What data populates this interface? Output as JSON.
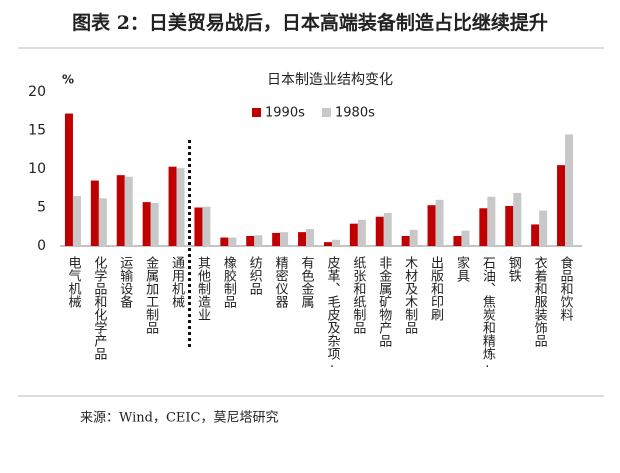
{
  "header": {
    "title": "图表 2：日美贸易战后，日本高端装备制造占比继续提升"
  },
  "chart_data": {
    "type": "bar",
    "title": "日本制造业结构变化",
    "y_unit": "%",
    "categories": [
      "电气机械",
      "化学品和化学产品",
      "运输设备",
      "金属加工制品",
      "通用机械",
      "其他制造业",
      "橡胶制品",
      "纺织品",
      "精密仪器",
      "有色金属",
      "皮革、毛皮及杂项·",
      "纸张和纸制品",
      "非金属矿物产品",
      "木材及木制品",
      "出版和印刷",
      "家具",
      "石油、焦炭和精炼·",
      "钢铁",
      "衣着和服装饰品",
      "食品和饮料"
    ],
    "series": [
      {
        "name": "1990s",
        "color": "#c00000",
        "values": [
          17.2,
          8.5,
          9.2,
          5.7,
          10.3,
          5.0,
          1.1,
          1.3,
          1.7,
          1.8,
          0.5,
          2.9,
          3.8,
          1.3,
          5.3,
          1.3,
          4.9,
          5.2,
          2.8,
          10.5
        ]
      },
      {
        "name": "1980s",
        "color": "#c8c8c8",
        "values": [
          6.5,
          6.2,
          9.0,
          5.6,
          10.1,
          5.1,
          1.1,
          1.4,
          1.8,
          2.2,
          0.8,
          3.4,
          4.3,
          2.1,
          6.0,
          2.0,
          6.4,
          6.9,
          4.6,
          14.5
        ]
      }
    ],
    "ylim": [
      0,
      20
    ],
    "yticks": [
      0,
      5,
      10,
      15,
      20
    ],
    "grid": false
  },
  "footer": {
    "source": "来源：Wind，CEIC，莫尼塔研究"
  }
}
